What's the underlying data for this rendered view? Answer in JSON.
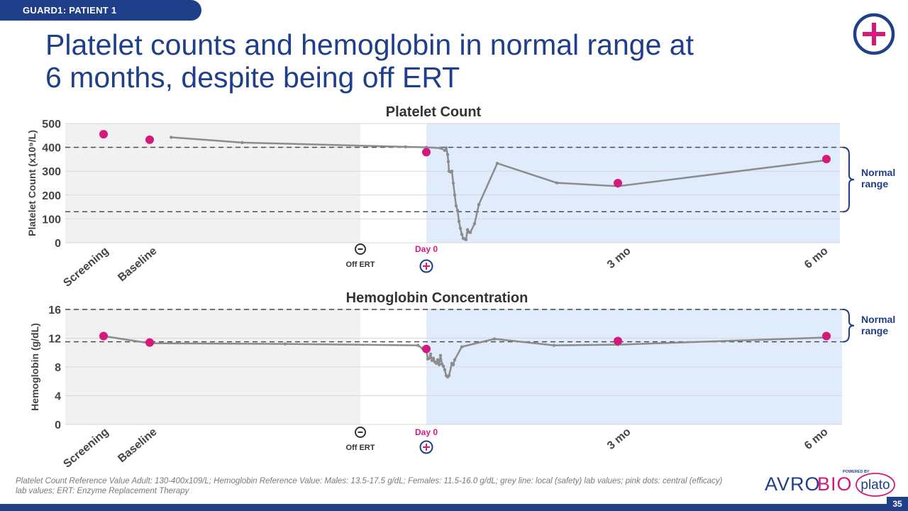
{
  "header": {
    "tag": "GUARD1: PATIENT 1",
    "title_line1": "Platelet counts and hemoglobin in normal range at",
    "title_line2": "6 months, despite being off ERT"
  },
  "colors": {
    "brand_blue": "#1f3f8a",
    "accent_pink": "#d4197a",
    "grey_line": "#8c8c8c",
    "pre_bg": "#f1f1f1",
    "post_bg": "#e0ebfc"
  },
  "chart_data": [
    {
      "type": "line",
      "title": "Platelet Count",
      "ylabel": "Platelet Count (x10⁹/L)",
      "ylim": [
        0,
        500
      ],
      "yticks": [
        0,
        100,
        200,
        300,
        400,
        500
      ],
      "reference_lines": [
        130,
        400
      ],
      "normal_range_label": [
        "Normal",
        "range"
      ],
      "x_labels": {
        "screening": "Screening",
        "baseline": "Baseline",
        "off_ert": "Off ERT",
        "day0": "Day 0",
        "m3": "3 mo",
        "m6": "6 mo"
      },
      "local_labs": [
        {
          "x": -183,
          "y": 442
        },
        {
          "x": -150,
          "y": 420
        },
        {
          "x": -30,
          "y": 402
        },
        {
          "x": 0,
          "y": 400
        },
        {
          "x": 10,
          "y": 397
        },
        {
          "x": 13,
          "y": 387
        },
        {
          "x": 14,
          "y": 398
        },
        {
          "x": 15,
          "y": 370
        },
        {
          "x": 15.5,
          "y": 340
        },
        {
          "x": 16,
          "y": 300
        },
        {
          "x": 17,
          "y": 297
        },
        {
          "x": 18,
          "y": 300
        },
        {
          "x": 19,
          "y": 250
        },
        {
          "x": 20,
          "y": 200
        },
        {
          "x": 21,
          "y": 155
        },
        {
          "x": 22,
          "y": 135
        },
        {
          "x": 23,
          "y": 90
        },
        {
          "x": 24,
          "y": 60
        },
        {
          "x": 25,
          "y": 35
        },
        {
          "x": 26,
          "y": 18
        },
        {
          "x": 27,
          "y": 16
        },
        {
          "x": 28,
          "y": 13
        },
        {
          "x": 29,
          "y": 55
        },
        {
          "x": 30,
          "y": 45
        },
        {
          "x": 31,
          "y": 43
        },
        {
          "x": 34,
          "y": 80
        },
        {
          "x": 37,
          "y": 160
        },
        {
          "x": 50,
          "y": 333
        },
        {
          "x": 92,
          "y": 251
        },
        {
          "x": 135,
          "y": 237
        },
        {
          "x": 279,
          "y": 346
        }
      ],
      "central_labs": [
        {
          "x": -225,
          "y": 455
        },
        {
          "x": -193,
          "y": 432
        },
        {
          "x": 0,
          "y": 380
        },
        {
          "x": 135,
          "y": 250
        },
        {
          "x": 279,
          "y": 351
        }
      ]
    },
    {
      "type": "line",
      "title": "Hemoglobin Concentration",
      "ylabel": "Hemoglobin (g/dL)",
      "ylim": [
        0,
        16
      ],
      "yticks": [
        0,
        4,
        8,
        12,
        16
      ],
      "reference_lines": [
        11.5,
        16
      ],
      "normal_range_label": [
        "Normal",
        "range"
      ],
      "x_labels": {
        "screening": "Screening",
        "baseline": "Baseline",
        "off_ert": "Off ERT",
        "day0": "Day 0",
        "m3": "3 mo",
        "m6": "6 mo"
      },
      "local_labs": [
        {
          "x": -225,
          "y": 12.3
        },
        {
          "x": -193,
          "y": 11.3
        },
        {
          "x": -130,
          "y": 11.2
        },
        {
          "x": -12,
          "y": 11.0
        },
        {
          "x": -6,
          "y": 10.6
        },
        {
          "x": -3,
          "y": 10.5
        },
        {
          "x": 0,
          "y": 10.4
        },
        {
          "x": 1,
          "y": 9.1
        },
        {
          "x": 2,
          "y": 9.2
        },
        {
          "x": 3,
          "y": 9.8
        },
        {
          "x": 4,
          "y": 8.9
        },
        {
          "x": 5,
          "y": 9.2
        },
        {
          "x": 6,
          "y": 8.7
        },
        {
          "x": 7,
          "y": 8.5
        },
        {
          "x": 8,
          "y": 9.0
        },
        {
          "x": 9,
          "y": 8.3
        },
        {
          "x": 10,
          "y": 9.6
        },
        {
          "x": 11,
          "y": 8.4
        },
        {
          "x": 12,
          "y": 8.1
        },
        {
          "x": 13,
          "y": 7.6
        },
        {
          "x": 14,
          "y": 6.8
        },
        {
          "x": 15,
          "y": 6.6
        },
        {
          "x": 16,
          "y": 6.8
        },
        {
          "x": 18,
          "y": 8.5
        },
        {
          "x": 19,
          "y": 8.3
        },
        {
          "x": 20,
          "y": 9.0
        },
        {
          "x": 25,
          "y": 10.8
        },
        {
          "x": 48,
          "y": 11.9
        },
        {
          "x": 90,
          "y": 11.0
        },
        {
          "x": 135,
          "y": 11.1
        },
        {
          "x": 279,
          "y": 12.1
        }
      ],
      "central_labs": [
        {
          "x": -225,
          "y": 12.3
        },
        {
          "x": -193,
          "y": 11.4
        },
        {
          "x": 0,
          "y": 10.5
        },
        {
          "x": 135,
          "y": 11.6
        },
        {
          "x": 279,
          "y": 12.3
        }
      ]
    }
  ],
  "footnote": "Platelet Count Reference Value Adult: 130-400x109/L; Hemoglobin Reference Value: Males: 13.5-17.5 g/dL; Females: 11.5-16.0 g/dL; grey line: local (safety) lab values; pink dots: central (efficacy) lab values; ERT: Enzyme Replacement Therapy",
  "brand": {
    "name_part1": "AVRO",
    "name_part2": "BIO",
    "powered_by": "POWERED BY",
    "plato": "plato"
  },
  "page_number": "35"
}
